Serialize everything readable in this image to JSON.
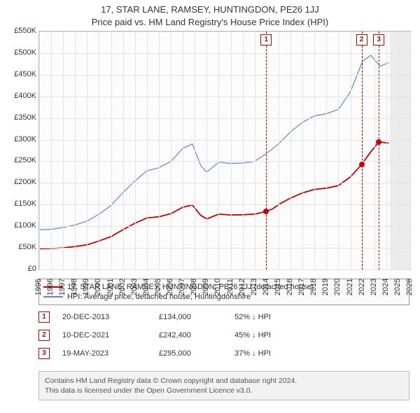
{
  "title_line1": "17, STAR LANE, RAMSEY, HUNTINGDON, PE26 1JJ",
  "title_line2": "Price paid vs. HM Land Registry's House Price Index (HPI)",
  "colors": {
    "series_property": "#cc0000",
    "series_hpi": "#5b89c7",
    "grid": "#e4e4e4",
    "axis_text": "#333333",
    "marker_border": "#cc0000",
    "background": "#ffffff",
    "plot_bg": "#fcfcfc",
    "future_shade": "#ececec"
  },
  "chart": {
    "type": "line",
    "x_domain": [
      1995,
      2026
    ],
    "y_domain": [
      0,
      550000
    ],
    "y_ticks": [
      0,
      50000,
      100000,
      150000,
      200000,
      250000,
      300000,
      350000,
      400000,
      450000,
      500000,
      550000
    ],
    "y_tick_labels": [
      "£0",
      "£50K",
      "£100K",
      "£150K",
      "£200K",
      "£250K",
      "£300K",
      "£350K",
      "£400K",
      "£450K",
      "£500K",
      "£550K"
    ],
    "x_ticks": [
      1995,
      1996,
      1997,
      1998,
      1999,
      2000,
      2001,
      2002,
      2003,
      2004,
      2005,
      2006,
      2007,
      2008,
      2009,
      2010,
      2011,
      2012,
      2013,
      2014,
      2015,
      2016,
      2017,
      2018,
      2019,
      2020,
      2021,
      2022,
      2023,
      2024,
      2025,
      2026
    ],
    "future_start": 2024.3,
    "series": {
      "hpi": {
        "label": "HPI: Average price, detached house, Huntingdonshire",
        "color": "#5b89c7",
        "line_width": 1.2,
        "points": [
          [
            1995,
            92000
          ],
          [
            1996,
            93000
          ],
          [
            1997,
            97000
          ],
          [
            1998,
            103000
          ],
          [
            1999,
            112000
          ],
          [
            2000,
            128000
          ],
          [
            2001,
            148000
          ],
          [
            2002,
            178000
          ],
          [
            2003,
            205000
          ],
          [
            2004,
            228000
          ],
          [
            2005,
            235000
          ],
          [
            2006,
            250000
          ],
          [
            2007,
            280000
          ],
          [
            2007.8,
            290000
          ],
          [
            2008.5,
            240000
          ],
          [
            2009,
            225000
          ],
          [
            2010,
            248000
          ],
          [
            2011,
            245000
          ],
          [
            2012,
            246000
          ],
          [
            2013,
            250000
          ],
          [
            2014,
            268000
          ],
          [
            2015,
            290000
          ],
          [
            2016,
            318000
          ],
          [
            2017,
            340000
          ],
          [
            2018,
            355000
          ],
          [
            2019,
            360000
          ],
          [
            2020,
            370000
          ],
          [
            2021,
            410000
          ],
          [
            2022,
            480000
          ],
          [
            2022.7,
            495000
          ],
          [
            2023.5,
            470000
          ],
          [
            2024.2,
            478000
          ]
        ]
      },
      "property": {
        "label": "17, STAR LANE, RAMSEY, HUNTINGDON, PE26 1JJ (detached house)",
        "color": "#cc0000",
        "line_width": 1.8,
        "points": [
          [
            1995,
            48000
          ],
          [
            1996,
            48500
          ],
          [
            1997,
            50000
          ],
          [
            1998,
            53000
          ],
          [
            1999,
            57000
          ],
          [
            2000,
            66000
          ],
          [
            2001,
            76000
          ],
          [
            2002,
            92000
          ],
          [
            2003,
            107000
          ],
          [
            2004,
            119000
          ],
          [
            2005,
            122000
          ],
          [
            2006,
            129000
          ],
          [
            2007,
            144000
          ],
          [
            2007.8,
            149000
          ],
          [
            2008.5,
            125000
          ],
          [
            2009,
            117000
          ],
          [
            2010,
            128000
          ],
          [
            2011,
            126000
          ],
          [
            2012,
            126500
          ],
          [
            2013,
            128000
          ],
          [
            2013.97,
            134000
          ],
          [
            2014.5,
            140000
          ],
          [
            2015,
            150000
          ],
          [
            2016,
            165000
          ],
          [
            2017,
            177000
          ],
          [
            2018,
            185000
          ],
          [
            2019,
            188000
          ],
          [
            2020,
            194000
          ],
          [
            2021,
            214000
          ],
          [
            2021.94,
            242400
          ],
          [
            2022.6,
            268000
          ],
          [
            2023.38,
            295000
          ],
          [
            2024.2,
            292000
          ]
        ]
      }
    },
    "sale_markers": [
      {
        "n": "1",
        "x": 2013.97,
        "y": 134000
      },
      {
        "n": "2",
        "x": 2021.94,
        "y": 242400
      },
      {
        "n": "3",
        "x": 2023.38,
        "y": 295000
      }
    ]
  },
  "legend": [
    {
      "color": "#cc0000",
      "label": "17, STAR LANE, RAMSEY, HUNTINGDON, PE26 1JJ (detached house)"
    },
    {
      "color": "#5b89c7",
      "label": "HPI: Average price, detached house, Huntingdonshire"
    }
  ],
  "sales_table": [
    {
      "n": "1",
      "date": "20-DEC-2013",
      "price": "£134,000",
      "delta": "52% ↓ HPI"
    },
    {
      "n": "2",
      "date": "10-DEC-2021",
      "price": "£242,400",
      "delta": "45% ↓ HPI"
    },
    {
      "n": "3",
      "date": "19-MAY-2023",
      "price": "£295,000",
      "delta": "37% ↓ HPI"
    }
  ],
  "footer_line1": "Contains HM Land Registry data © Crown copyright and database right 2024.",
  "footer_line2": "This data is licensed under the Open Government Licence v3.0."
}
